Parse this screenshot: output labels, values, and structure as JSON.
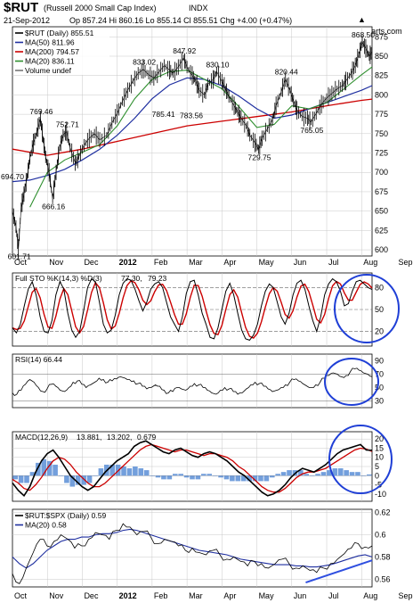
{
  "header": {
    "symbol": "$RUT",
    "name": "(Russell 2000 Small Cap Index)",
    "exchange": "INDX",
    "date": "21-Sep-2012",
    "quote": "Op 857.24  Hi 860.16  Lo 855.14  Cl 855.51  Chg +4.00 (+0.47%)",
    "copyright": "© StockCharts.com",
    "up_arrow": "▲"
  },
  "colors": {
    "price": "#000000",
    "ma50": "#1f2fa0",
    "ma200": "#cc0000",
    "ma20": "#2f8f2f",
    "sto_k": "#000000",
    "sto_d": "#cc0000",
    "macd": "#000000",
    "signal": "#cc0000",
    "histogram": "#5b8ed6",
    "circle": "#1f3fd6",
    "trendline": "#2f4fe0",
    "grid": "#c8c8c8",
    "quote_up": "#2a7a2a"
  },
  "chart_data": [
    {
      "type": "line",
      "title": "$RUT (Daily) 855.51",
      "series": [
        {
          "name": "$RUT (Daily) 855.51",
          "kind": "ohlc"
        },
        {
          "name": "MA(50) 811.96"
        },
        {
          "name": "MA(200) 794.57"
        },
        {
          "name": "MA(20) 836.11"
        },
        {
          "name": "Volume undef"
        }
      ],
      "yticks": [
        600,
        625,
        650,
        675,
        700,
        725,
        750,
        775,
        800,
        825,
        850,
        875
      ],
      "ylim": [
        592,
        888
      ],
      "x_labels": [
        "Oct",
        "Nov",
        "Dec",
        "2012",
        "Feb",
        "Mar",
        "Apr",
        "May",
        "Jun",
        "Jul",
        "Aug",
        "Sep"
      ],
      "x_months": [
        0,
        1,
        2,
        3,
        4,
        5,
        6,
        7,
        8,
        9,
        10,
        11
      ],
      "price_path": [
        [
          0,
          650
        ],
        [
          0.1,
          630
        ],
        [
          0.17,
          601.71
        ],
        [
          0.25,
          655
        ],
        [
          0.33,
          672
        ],
        [
          0.42,
          694.7
        ],
        [
          0.5,
          718
        ],
        [
          0.6,
          738
        ],
        [
          0.7,
          752
        ],
        [
          0.8,
          769.46
        ],
        [
          0.88,
          742
        ],
        [
          0.95,
          720
        ],
        [
          1.05,
          700
        ],
        [
          1.15,
          666.16
        ],
        [
          1.25,
          700
        ],
        [
          1.35,
          732
        ],
        [
          1.45,
          748
        ],
        [
          1.55,
          752.71
        ],
        [
          1.65,
          732
        ],
        [
          1.8,
          712
        ],
        [
          1.9,
          720
        ],
        [
          2.05,
          735
        ],
        [
          2.2,
          744
        ],
        [
          2.35,
          750
        ],
        [
          2.5,
          742
        ],
        [
          2.7,
          748
        ],
        [
          2.85,
          764
        ],
        [
          3.0,
          776
        ],
        [
          3.15,
          792
        ],
        [
          3.3,
          806
        ],
        [
          3.45,
          818
        ],
        [
          3.6,
          828
        ],
        [
          3.75,
          833.02
        ],
        [
          3.9,
          826
        ],
        [
          4.05,
          822
        ],
        [
          4.2,
          830
        ],
        [
          4.35,
          838
        ],
        [
          4.5,
          832
        ],
        [
          4.6,
          828
        ],
        [
          4.75,
          836
        ],
        [
          4.9,
          847.92
        ],
        [
          5.0,
          836
        ],
        [
          5.15,
          825
        ],
        [
          5.25,
          818
        ],
        [
          5.35,
          806
        ],
        [
          5.5,
          800
        ],
        [
          5.6,
          814
        ],
        [
          5.75,
          820
        ],
        [
          5.85,
          830.1
        ],
        [
          6.0,
          817
        ],
        [
          6.1,
          808
        ],
        [
          6.2,
          798
        ],
        [
          6.35,
          786
        ],
        [
          6.45,
          778
        ],
        [
          6.55,
          770
        ],
        [
          6.7,
          760
        ],
        [
          6.8,
          748
        ],
        [
          6.95,
          738
        ],
        [
          7.05,
          729.75
        ],
        [
          7.15,
          744
        ],
        [
          7.3,
          756
        ],
        [
          7.45,
          768
        ],
        [
          7.55,
          786
        ],
        [
          7.7,
          804
        ],
        [
          7.82,
          820.44
        ],
        [
          7.95,
          806
        ],
        [
          8.05,
          792
        ],
        [
          8.15,
          780
        ],
        [
          8.3,
          772
        ],
        [
          8.45,
          770
        ],
        [
          8.55,
          765.05
        ],
        [
          8.7,
          776
        ],
        [
          8.85,
          788
        ],
        [
          9.0,
          796
        ],
        [
          9.15,
          802
        ],
        [
          9.3,
          808
        ],
        [
          9.45,
          812
        ],
        [
          9.55,
          818
        ],
        [
          9.7,
          828
        ],
        [
          9.82,
          838
        ],
        [
          9.92,
          852
        ],
        [
          10.02,
          868.5
        ],
        [
          10.12,
          860
        ],
        [
          10.22,
          850
        ],
        [
          10.3,
          855.51
        ]
      ],
      "ma200_path": [
        [
          0,
          730
        ],
        [
          1,
          722
        ],
        [
          2,
          730
        ],
        [
          3,
          740
        ],
        [
          4,
          750
        ],
        [
          5,
          760
        ],
        [
          6,
          766
        ],
        [
          7,
          772
        ],
        [
          8,
          778
        ],
        [
          9,
          786
        ],
        [
          10,
          793
        ],
        [
          10.3,
          794.57
        ]
      ],
      "ma50_path": [
        [
          0,
          688
        ],
        [
          0.5,
          690
        ],
        [
          1,
          696
        ],
        [
          1.5,
          704
        ],
        [
          2,
          716
        ],
        [
          2.5,
          730
        ],
        [
          3,
          748
        ],
        [
          3.5,
          770
        ],
        [
          4,
          795
        ],
        [
          4.5,
          813
        ],
        [
          5,
          822
        ],
        [
          5.5,
          820
        ],
        [
          6,
          812
        ],
        [
          6.5,
          798
        ],
        [
          7,
          782
        ],
        [
          7.5,
          770
        ],
        [
          8,
          774
        ],
        [
          8.5,
          782
        ],
        [
          9,
          790
        ],
        [
          9.5,
          798
        ],
        [
          10,
          806
        ],
        [
          10.3,
          811.96
        ]
      ],
      "ma20_path": [
        [
          0.5,
          655
        ],
        [
          1,
          700
        ],
        [
          1.5,
          716
        ],
        [
          2,
          726
        ],
        [
          2.5,
          736
        ],
        [
          3,
          760
        ],
        [
          3.5,
          795
        ],
        [
          4,
          820
        ],
        [
          4.5,
          830
        ],
        [
          5,
          832
        ],
        [
          5.5,
          820
        ],
        [
          6,
          808
        ],
        [
          6.5,
          784
        ],
        [
          7,
          758
        ],
        [
          7.5,
          762
        ],
        [
          8,
          786
        ],
        [
          8.5,
          782
        ],
        [
          9,
          790
        ],
        [
          9.5,
          808
        ],
        [
          10,
          826
        ],
        [
          10.3,
          836.11
        ]
      ],
      "annotations": [
        {
          "text": "601.71",
          "x": 0.17,
          "y": 601.71,
          "pos": "below"
        },
        {
          "text": "694.70",
          "x": 0.42,
          "y": 694.7,
          "pos": "left"
        },
        {
          "text": "769.46",
          "x": 0.8,
          "y": 769.46,
          "pos": "above"
        },
        {
          "text": "666.16",
          "x": 1.15,
          "y": 666.16,
          "pos": "below"
        },
        {
          "text": "752.71",
          "x": 1.55,
          "y": 752.71,
          "pos": "above"
        },
        {
          "text": "833.02",
          "x": 3.75,
          "y": 833.02,
          "pos": "above"
        },
        {
          "text": "785.41",
          "x": 4.3,
          "y": 785.41,
          "pos": "below"
        },
        {
          "text": "847.92",
          "x": 4.9,
          "y": 847.92,
          "pos": "above"
        },
        {
          "text": "783.56",
          "x": 5.1,
          "y": 783.56,
          "pos": "below"
        },
        {
          "text": "830.10",
          "x": 5.85,
          "y": 830.1,
          "pos": "above"
        },
        {
          "text": "729.75",
          "x": 7.05,
          "y": 729.75,
          "pos": "below"
        },
        {
          "text": "820.44",
          "x": 7.82,
          "y": 820.44,
          "pos": "above"
        },
        {
          "text": "765.05",
          "x": 8.55,
          "y": 765.05,
          "pos": "below"
        },
        {
          "text": "868.50",
          "x": 10.02,
          "y": 868.5,
          "pos": "above"
        }
      ]
    },
    {
      "type": "line",
      "title": "Full STO %K(14,3) %D(3) 77.30, 79.23",
      "legend": {
        "prefix": "Full STO %K(14,3) %D(3)",
        "k_value": "77.30,",
        "d_value": "79.23"
      },
      "yticks": [
        20,
        50,
        80
      ],
      "ylim": [
        0,
        100
      ],
      "ref_lines": [
        20,
        50,
        80
      ],
      "k_last": 77.3,
      "d_last": 79.23,
      "k_points": [
        25,
        18,
        30,
        55,
        78,
        88,
        70,
        40,
        20,
        18,
        35,
        70,
        88,
        78,
        45,
        22,
        12,
        20,
        48,
        80,
        92,
        88,
        60,
        30,
        18,
        22,
        42,
        70,
        86,
        92,
        90,
        78,
        62,
        48,
        60,
        78,
        85,
        88,
        80,
        60,
        40,
        30,
        20,
        40,
        72,
        88,
        90,
        70,
        45,
        30,
        12,
        10,
        25,
        50,
        75,
        86,
        70,
        45,
        22,
        10,
        8,
        15,
        30,
        55,
        75,
        85,
        80,
        60,
        40,
        30,
        45,
        70,
        86,
        90,
        78,
        55,
        35,
        20,
        40,
        70,
        85,
        92,
        88,
        75,
        55,
        58,
        75,
        88,
        90,
        85,
        80,
        77.3
      ]
    },
    {
      "type": "line",
      "title": "RSI(14) 66.44",
      "yticks": [
        30,
        50,
        70,
        90
      ],
      "ylim": [
        20,
        100
      ],
      "ref_lines": [
        30,
        70
      ],
      "last": 66.44,
      "points": [
        42,
        40,
        46,
        55,
        62,
        58,
        50,
        44,
        48,
        55,
        52,
        46,
        44,
        50,
        58,
        60,
        55,
        50,
        54,
        58,
        64,
        62,
        58,
        60,
        63,
        66,
        64,
        62,
        60,
        56,
        52,
        48,
        50,
        54,
        52,
        46,
        42,
        44,
        50,
        48,
        46,
        52,
        56,
        54,
        50,
        46,
        42,
        40,
        46,
        50,
        48,
        44,
        40,
        42,
        48,
        54,
        58,
        56,
        52,
        48,
        44,
        46,
        50,
        54,
        58,
        62,
        60,
        56,
        52,
        50,
        54,
        58,
        64,
        68,
        72,
        70,
        66,
        68,
        74,
        78,
        76,
        72,
        70,
        66.44
      ]
    },
    {
      "type": "line",
      "title": "MACD(12,26,9) 13.881, 13.202, 0.679",
      "legend": {
        "prefix": "MACD(12,26,9)",
        "macd_value": "13.881,",
        "signal_value": "13.202,",
        "hist_value": "0.679"
      },
      "yticks": [
        -10,
        -5,
        0,
        5,
        10,
        15,
        20
      ],
      "ylim": [
        -14,
        24
      ],
      "macd": [
        -4,
        -8,
        -11,
        -6,
        2,
        8,
        12,
        14,
        10,
        5,
        0,
        -3,
        -6,
        -8,
        -6,
        -2,
        2,
        5,
        8,
        10,
        12,
        16,
        18,
        19,
        17,
        15,
        13,
        12,
        14,
        15,
        13,
        11,
        10,
        12,
        13,
        12,
        10,
        8,
        5,
        2,
        0,
        -3,
        -6,
        -9,
        -11,
        -10,
        -8,
        -5,
        -1,
        2,
        4,
        3,
        2,
        4,
        6,
        9,
        12,
        14,
        15,
        16,
        17,
        14,
        13.881
      ],
      "signal": [
        -2,
        -4,
        -7,
        -8,
        -5,
        -1,
        4,
        8,
        10,
        9,
        6,
        2,
        -1,
        -4,
        -6,
        -6,
        -4,
        -1,
        2,
        5,
        8,
        11,
        14,
        16,
        17,
        16,
        15,
        14,
        13,
        14,
        14,
        13,
        12,
        11,
        12,
        12,
        11,
        10,
        8,
        5,
        3,
        0,
        -3,
        -6,
        -8,
        -9,
        -9,
        -7,
        -4,
        -1,
        1,
        2,
        2,
        3,
        4,
        6,
        8,
        10,
        12,
        14,
        15,
        14.5,
        13.202
      ],
      "histogram": [
        -2,
        -4,
        -4,
        2,
        7,
        9,
        8,
        6,
        0,
        -4,
        -6,
        -5,
        -5,
        -4,
        0,
        4,
        6,
        6,
        6,
        5,
        4,
        5,
        4,
        3,
        0,
        -1,
        -2,
        -2,
        1,
        1,
        -1,
        -2,
        -2,
        1,
        1,
        0,
        -1,
        -2,
        -3,
        -3,
        -3,
        -3,
        -3,
        -3,
        -3,
        -1,
        1,
        2,
        3,
        3,
        3,
        1,
        0,
        1,
        2,
        3,
        4,
        4,
        3,
        2,
        2,
        0,
        0.679
      ]
    },
    {
      "type": "line",
      "title": "$RUT:$SPX (Daily) 0.59",
      "series": [
        {
          "name": "$RUT:$SPX (Daily) 0.59"
        },
        {
          "name": "MA(20) 0.58"
        }
      ],
      "yticks": [
        0.56,
        0.58,
        0.6,
        0.62
      ],
      "ylim": [
        0.553,
        0.623
      ],
      "x_labels": [
        "Oct",
        "Nov",
        "Dec",
        "2012",
        "Feb",
        "Mar",
        "Apr",
        "May",
        "Jun",
        "Jul",
        "Aug",
        "Sep"
      ],
      "ratio": [
        0.565,
        0.556,
        0.57,
        0.584,
        0.596,
        0.59,
        0.594,
        0.6,
        0.596,
        0.588,
        0.59,
        0.596,
        0.602,
        0.6,
        0.596,
        0.604,
        0.61,
        0.607,
        0.6,
        0.603,
        0.598,
        0.592,
        0.596,
        0.594,
        0.59,
        0.586,
        0.588,
        0.584,
        0.582,
        0.586,
        0.582,
        0.578,
        0.58,
        0.576,
        0.572,
        0.576,
        0.574,
        0.57,
        0.574,
        0.578,
        0.574,
        0.57,
        0.572,
        0.568,
        0.566,
        0.57,
        0.574,
        0.578,
        0.583,
        0.588,
        0.592,
        0.589,
        0.59
      ],
      "ma20": [
        0.58,
        0.574,
        0.57,
        0.574,
        0.58,
        0.586,
        0.59,
        0.594,
        0.596,
        0.596,
        0.598,
        0.598,
        0.6,
        0.601,
        0.601,
        0.602,
        0.604,
        0.605,
        0.604,
        0.602,
        0.6,
        0.598,
        0.596,
        0.594,
        0.592,
        0.59,
        0.588,
        0.586,
        0.585,
        0.584,
        0.583,
        0.582,
        0.58,
        0.578,
        0.577,
        0.576,
        0.575,
        0.574,
        0.573,
        0.573,
        0.573,
        0.572,
        0.572,
        0.571,
        0.571,
        0.572,
        0.573,
        0.575,
        0.577,
        0.579,
        0.581,
        0.582,
        0.58
      ],
      "trendline": [
        [
          8.4,
          0.557
        ],
        [
          10.3,
          0.577
        ]
      ]
    }
  ]
}
